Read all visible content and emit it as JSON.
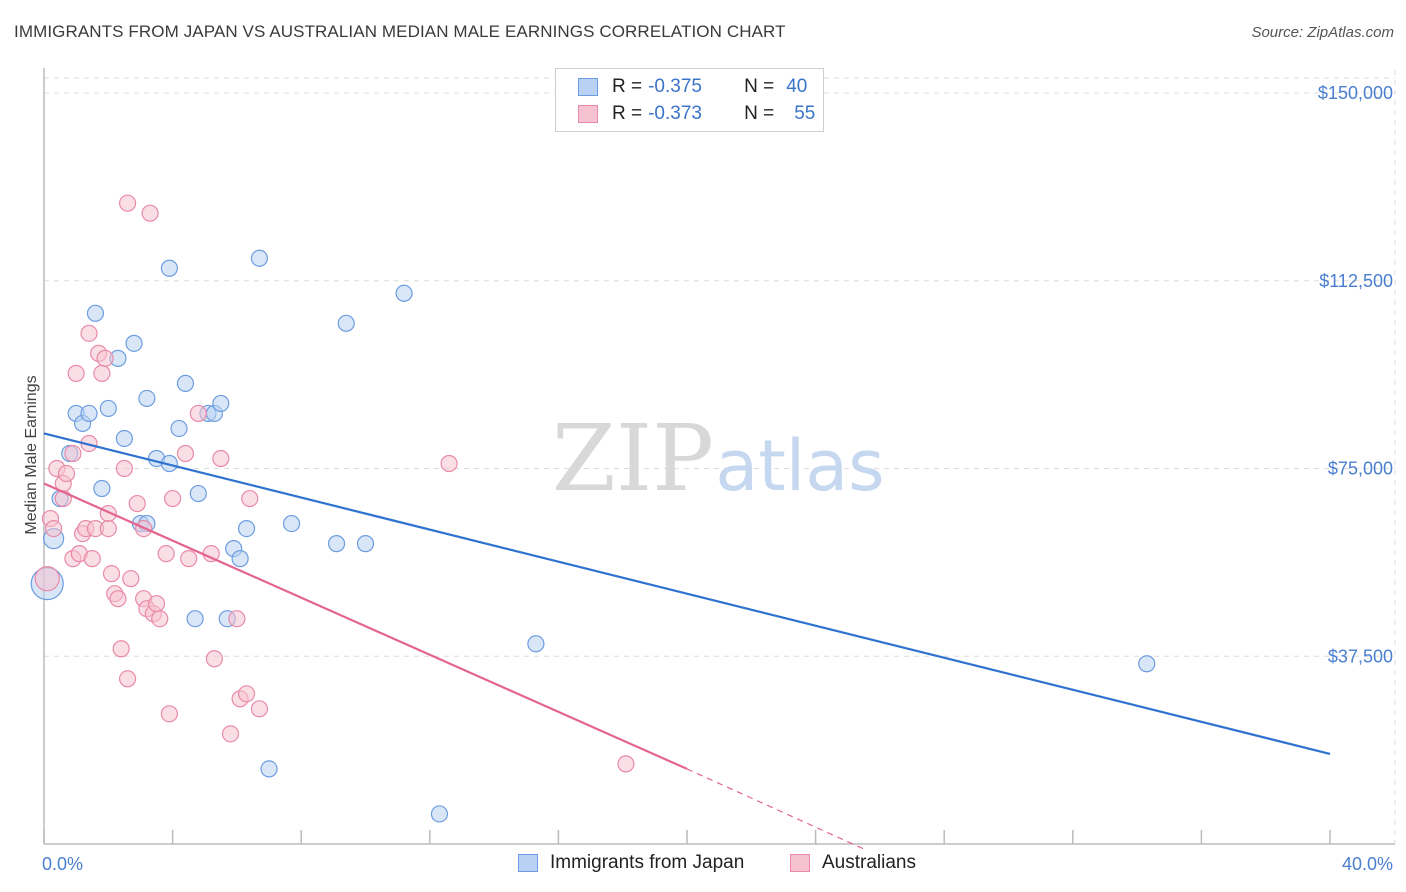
{
  "title": "IMMIGRANTS FROM JAPAN VS AUSTRALIAN MEDIAN MALE EARNINGS CORRELATION CHART",
  "source": "Source: ZipAtlas.com",
  "watermark": {
    "zip": "ZIP",
    "atlas": "atlas"
  },
  "colors": {
    "blue_fill": "#b9d1f2",
    "blue_stroke": "#6c9de0",
    "blue_line": "#2f72d0",
    "pink_fill": "#f6c2d2",
    "pink_stroke": "#e98aa8",
    "pink_line": "#e2648f",
    "axis_text": "#4a7fd0",
    "grid": "#dcdcdc"
  },
  "legend": {
    "rows": [
      {
        "r_label": "R =",
        "r_value": "-0.375",
        "n_label": "N =",
        "n_value": "40"
      },
      {
        "r_label": "R =",
        "r_value": "-0.373",
        "n_label": "N =",
        "n_value": "55"
      }
    ]
  },
  "bottom_legend": {
    "series1": "Immigrants from Japan",
    "series2": "Australians"
  },
  "chart_data": {
    "type": "scatter",
    "title": "IMMIGRANTS FROM JAPAN VS AUSTRALIAN MEDIAN MALE EARNINGS CORRELATION CHART",
    "xlabel": "",
    "ylabel": "Median Male Earnings",
    "xlim": [
      0,
      40
    ],
    "ylim": [
      0,
      153000
    ],
    "x_tick_labels": [
      "0.0%",
      "40.0%"
    ],
    "y_ticks": [
      37500,
      75000,
      112500,
      150000
    ],
    "y_tick_labels": [
      "$37,500",
      "$75,000",
      "$112,500",
      "$150,000"
    ],
    "grid": true,
    "series": [
      {
        "name": "Immigrants from Japan",
        "color": "blue",
        "trend": {
          "x": [
            0,
            40
          ],
          "y": [
            82000,
            18000
          ],
          "style": "solid"
        },
        "points": [
          [
            0.1,
            52000,
            16
          ],
          [
            0.3,
            61000,
            10
          ],
          [
            0.5,
            69000,
            8
          ],
          [
            0.8,
            78000,
            8
          ],
          [
            1.0,
            86000,
            8
          ],
          [
            1.2,
            84000,
            8
          ],
          [
            1.4,
            86000,
            8
          ],
          [
            1.6,
            106000,
            8
          ],
          [
            1.8,
            71000,
            8
          ],
          [
            2.0,
            87000,
            8
          ],
          [
            2.3,
            97000,
            8
          ],
          [
            2.5,
            81000,
            8
          ],
          [
            2.8,
            100000,
            8
          ],
          [
            3.0,
            64000,
            8
          ],
          [
            3.2,
            64000,
            8
          ],
          [
            3.2,
            89000,
            8
          ],
          [
            3.5,
            77000,
            8
          ],
          [
            3.9,
            76000,
            8
          ],
          [
            3.9,
            115000,
            8
          ],
          [
            4.2,
            83000,
            8
          ],
          [
            4.4,
            92000,
            8
          ],
          [
            4.7,
            45000,
            8
          ],
          [
            4.8,
            70000,
            8
          ],
          [
            5.1,
            86000,
            8
          ],
          [
            5.3,
            86000,
            8
          ],
          [
            5.5,
            88000,
            8
          ],
          [
            5.7,
            45000,
            8
          ],
          [
            5.9,
            59000,
            8
          ],
          [
            6.1,
            57000,
            8
          ],
          [
            6.3,
            63000,
            8
          ],
          [
            6.7,
            117000,
            8
          ],
          [
            7.0,
            15000,
            8
          ],
          [
            7.7,
            64000,
            8
          ],
          [
            9.1,
            60000,
            8
          ],
          [
            9.4,
            104000,
            8
          ],
          [
            10.0,
            60000,
            8
          ],
          [
            11.2,
            110000,
            8
          ],
          [
            12.3,
            6000,
            8
          ],
          [
            15.3,
            40000,
            8
          ],
          [
            34.3,
            36000,
            8
          ]
        ]
      },
      {
        "name": "Australians",
        "color": "pink",
        "trend": {
          "x": [
            0,
            20,
            25.5
          ],
          "y": [
            72000,
            15000,
            -1000
          ],
          "solid_until_x": 20
        },
        "points": [
          [
            0.1,
            53000,
            12
          ],
          [
            0.2,
            65000,
            8
          ],
          [
            0.3,
            63000,
            8
          ],
          [
            0.4,
            75000,
            8
          ],
          [
            0.6,
            69000,
            8
          ],
          [
            0.6,
            72000,
            8
          ],
          [
            0.7,
            74000,
            8
          ],
          [
            0.9,
            78000,
            8
          ],
          [
            0.9,
            57000,
            8
          ],
          [
            1.0,
            94000,
            8
          ],
          [
            1.1,
            58000,
            8
          ],
          [
            1.2,
            62000,
            8
          ],
          [
            1.3,
            63000,
            8
          ],
          [
            1.4,
            102000,
            8
          ],
          [
            1.4,
            80000,
            8
          ],
          [
            1.5,
            57000,
            8
          ],
          [
            1.6,
            63000,
            8
          ],
          [
            1.7,
            98000,
            8
          ],
          [
            1.8,
            94000,
            8
          ],
          [
            1.9,
            97000,
            8
          ],
          [
            2.0,
            66000,
            8
          ],
          [
            2.0,
            63000,
            8
          ],
          [
            2.1,
            54000,
            8
          ],
          [
            2.2,
            50000,
            8
          ],
          [
            2.3,
            49000,
            8
          ],
          [
            2.4,
            39000,
            8
          ],
          [
            2.5,
            75000,
            8
          ],
          [
            2.6,
            33000,
            8
          ],
          [
            2.6,
            128000,
            8
          ],
          [
            2.7,
            53000,
            8
          ],
          [
            2.9,
            68000,
            8
          ],
          [
            3.1,
            63000,
            8
          ],
          [
            3.1,
            49000,
            8
          ],
          [
            3.2,
            47000,
            8
          ],
          [
            3.3,
            126000,
            8
          ],
          [
            3.4,
            46000,
            8
          ],
          [
            3.5,
            48000,
            8
          ],
          [
            3.6,
            45000,
            8
          ],
          [
            3.8,
            58000,
            8
          ],
          [
            3.9,
            26000,
            8
          ],
          [
            4.0,
            69000,
            8
          ],
          [
            4.4,
            78000,
            8
          ],
          [
            4.5,
            57000,
            8
          ],
          [
            4.8,
            86000,
            8
          ],
          [
            5.2,
            58000,
            8
          ],
          [
            5.3,
            37000,
            8
          ],
          [
            5.5,
            77000,
            8
          ],
          [
            5.8,
            22000,
            8
          ],
          [
            6.0,
            45000,
            8
          ],
          [
            6.1,
            29000,
            8
          ],
          [
            6.3,
            30000,
            8
          ],
          [
            6.4,
            69000,
            8
          ],
          [
            6.7,
            27000,
            8
          ],
          [
            12.6,
            76000,
            8
          ],
          [
            18.1,
            16000,
            8
          ]
        ]
      }
    ]
  }
}
